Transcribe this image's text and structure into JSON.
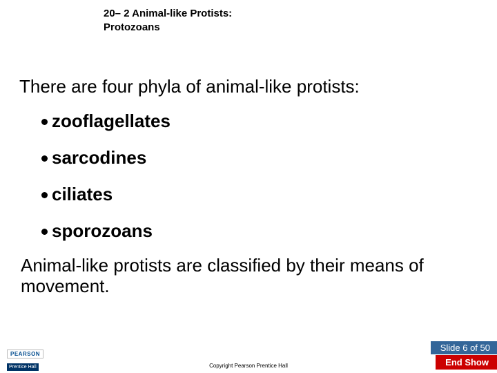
{
  "header": {
    "line1": "20– 2 Animal-like Protists:",
    "line2": "Protozoans"
  },
  "intro": "There are four phyla of animal-like protists:",
  "bullets": [
    "zooflagellates",
    "sarcodines",
    "ciliates",
    "sporozoans"
  ],
  "closing": "Animal-like protists are classified by their means of movement.",
  "footer": {
    "slidecount": "Slide 6 of 50",
    "endshow": "End Show",
    "copyright": "Copyright Pearson Prentice Hall",
    "logo_top": "PEARSON",
    "logo_bottom": "Prentice Hall"
  },
  "colors": {
    "background": "#ffffff",
    "text": "#000000",
    "slidecount_bg": "#336699",
    "endshow_bg": "#cc0000",
    "footer_text": "#ffffff"
  },
  "typography": {
    "header_size": 15,
    "body_size": 26,
    "footer_size": 13
  }
}
